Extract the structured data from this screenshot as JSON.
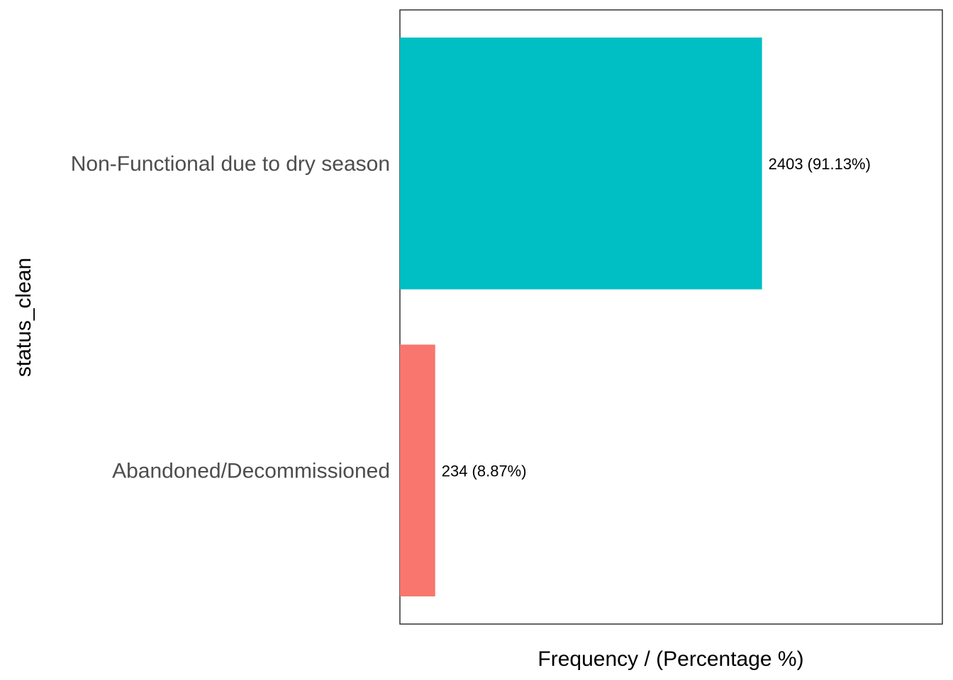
{
  "chart_data": {
    "type": "bar",
    "orientation": "horizontal",
    "categories": [
      "Non-Functional due to dry season",
      "Abandoned/Decommissioned"
    ],
    "values": [
      2403,
      234
    ],
    "data_labels": [
      "2403 (91.13%)",
      "234 (8.87%)"
    ],
    "colors": [
      "#00BFC4",
      "#F8766D"
    ],
    "title": "",
    "xlabel": "Frequency / (Percentage %)",
    "ylabel": "status_clean",
    "xlim": [
      0,
      3600
    ],
    "grid": false,
    "legend": "none"
  }
}
